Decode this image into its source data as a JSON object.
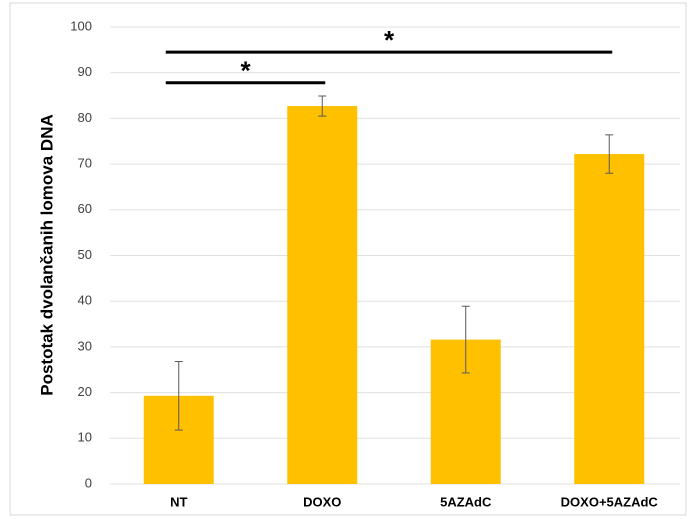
{
  "chart_data": {
    "type": "bar",
    "y_label": "Postotak dvolančanih lomova DNA",
    "categories": [
      "NT",
      "DOXO",
      "5AZAdC",
      "DOXO+5AZAdC"
    ],
    "values": [
      19.3,
      82.7,
      31.6,
      72.2
    ],
    "errors": [
      7.5,
      2.2,
      7.3,
      4.2
    ],
    "color": "#ffc000",
    "ylim": [
      0,
      100
    ],
    "yticks": [
      0,
      10,
      20,
      30,
      40,
      50,
      60,
      70,
      80,
      90,
      100
    ],
    "grid": true,
    "annotations": [
      {
        "text": "*",
        "from": "NT",
        "to": "DOXO",
        "y": 87.8
      },
      {
        "text": "*",
        "from": "NT",
        "to": "DOXO+5AZAdC",
        "y": 94.5
      }
    ]
  }
}
